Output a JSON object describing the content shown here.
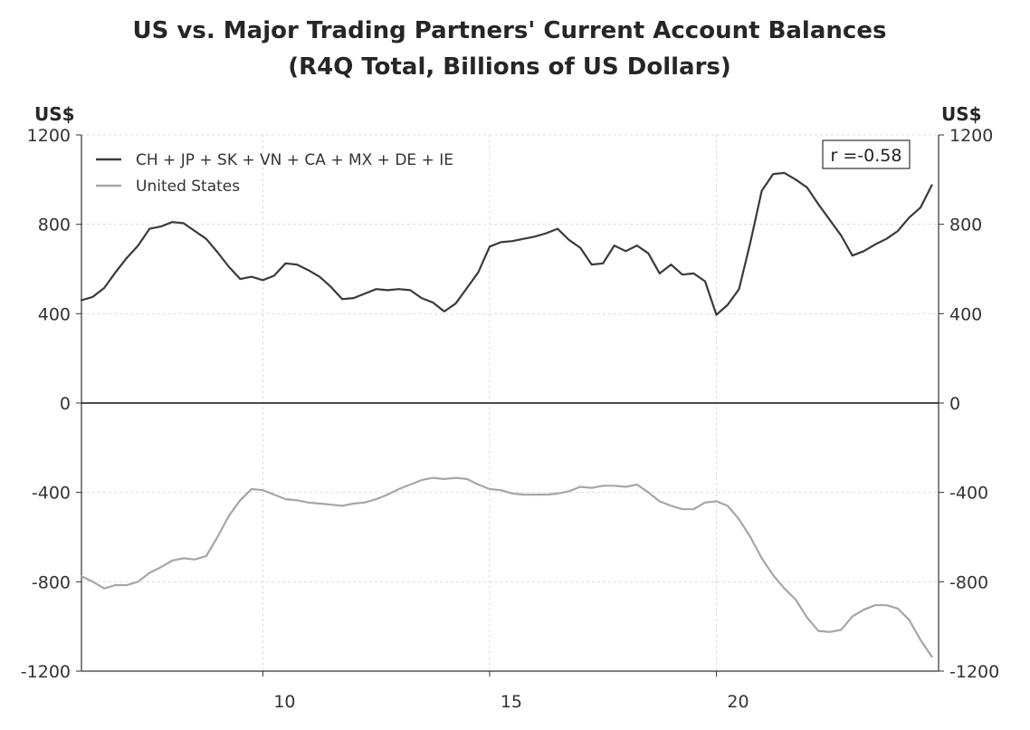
{
  "chart_data": {
    "type": "line",
    "title": "US vs. Major Trading Partners' Current Account Balances",
    "subtitle": "(R4Q Total, Billions of US Dollars)",
    "ylabel_left": "US$",
    "ylabel_right": "US$",
    "xlabel": "",
    "xlim": [
      6,
      24.9
    ],
    "ylim": [
      -1200,
      1200
    ],
    "x_ticks": [
      10,
      15,
      20
    ],
    "x_tick_labels": [
      "10",
      "15",
      "20"
    ],
    "y_ticks": [
      1200,
      800,
      400,
      0,
      -400,
      -800,
      -1200
    ],
    "y_tick_labels": [
      "1200",
      "800",
      "400",
      "0",
      "-400",
      "-800",
      "-1200"
    ],
    "grid": true,
    "legend_position": "top-left",
    "annotation": "r =-0.58",
    "series": [
      {
        "name": "CH + JP + SK + VN + CA + MX + DE + IE",
        "color": "#3a3a3a",
        "x": [
          6.0,
          6.25,
          6.5,
          6.75,
          7.0,
          7.25,
          7.5,
          7.75,
          8.0,
          8.25,
          8.5,
          8.75,
          9.0,
          9.25,
          9.5,
          9.75,
          10.0,
          10.25,
          10.5,
          10.75,
          11.0,
          11.25,
          11.5,
          11.75,
          12.0,
          12.25,
          12.5,
          12.75,
          13.0,
          13.25,
          13.5,
          13.75,
          14.0,
          14.25,
          14.5,
          14.75,
          15.0,
          15.25,
          15.5,
          15.75,
          16.0,
          16.25,
          16.5,
          16.75,
          17.0,
          17.25,
          17.5,
          17.75,
          18.0,
          18.25,
          18.5,
          18.75,
          19.0,
          19.25,
          19.5,
          19.75,
          20.0,
          20.25,
          20.5,
          20.75,
          21.0,
          21.25,
          21.5,
          21.75,
          22.0,
          22.25,
          22.5,
          22.75,
          23.0,
          23.25,
          23.5,
          23.75,
          24.0,
          24.25,
          24.5,
          24.75
        ],
        "values": [
          460,
          475,
          515,
          585,
          650,
          705,
          780,
          790,
          810,
          805,
          770,
          735,
          675,
          610,
          555,
          565,
          550,
          570,
          625,
          620,
          595,
          565,
          520,
          465,
          470,
          490,
          510,
          505,
          510,
          505,
          470,
          450,
          410,
          445,
          515,
          585,
          700,
          720,
          725,
          735,
          745,
          760,
          780,
          730,
          695,
          620,
          625,
          705,
          680,
          705,
          670,
          580,
          620,
          575,
          580,
          545,
          395,
          440,
          510,
          720,
          950,
          1025,
          1030,
          1000,
          965,
          890,
          820,
          750,
          660,
          680,
          710,
          735,
          770,
          830,
          875,
          975
        ]
      },
      {
        "name": "United States",
        "color": "#a6a6a6",
        "x": [
          6.0,
          6.25,
          6.5,
          6.75,
          7.0,
          7.25,
          7.5,
          7.75,
          8.0,
          8.25,
          8.5,
          8.75,
          9.0,
          9.25,
          9.5,
          9.75,
          10.0,
          10.25,
          10.5,
          10.75,
          11.0,
          11.25,
          11.5,
          11.75,
          12.0,
          12.25,
          12.5,
          12.75,
          13.0,
          13.25,
          13.5,
          13.75,
          14.0,
          14.25,
          14.5,
          14.75,
          15.0,
          15.25,
          15.5,
          15.75,
          16.0,
          16.25,
          16.5,
          16.75,
          17.0,
          17.25,
          17.5,
          17.75,
          18.0,
          18.25,
          18.5,
          18.75,
          19.0,
          19.25,
          19.5,
          19.75,
          20.0,
          20.25,
          20.5,
          20.75,
          21.0,
          21.25,
          21.5,
          21.75,
          22.0,
          22.25,
          22.5,
          22.75,
          23.0,
          23.25,
          23.5,
          23.75,
          24.0,
          24.25,
          24.5,
          24.75
        ],
        "values": [
          -775,
          -800,
          -830,
          -815,
          -815,
          -800,
          -760,
          -735,
          -705,
          -695,
          -700,
          -685,
          -600,
          -505,
          -435,
          -385,
          -390,
          -410,
          -430,
          -435,
          -445,
          -450,
          -455,
          -460,
          -450,
          -445,
          -430,
          -410,
          -385,
          -365,
          -345,
          -335,
          -340,
          -335,
          -340,
          -365,
          -385,
          -390,
          -405,
          -410,
          -410,
          -410,
          -405,
          -395,
          -375,
          -380,
          -370,
          -370,
          -375,
          -365,
          -400,
          -440,
          -460,
          -475,
          -475,
          -445,
          -440,
          -460,
          -520,
          -600,
          -695,
          -770,
          -830,
          -880,
          -960,
          -1020,
          -1025,
          -1015,
          -955,
          -925,
          -905,
          -905,
          -920,
          -970,
          -1060,
          -1135
        ]
      }
    ]
  }
}
